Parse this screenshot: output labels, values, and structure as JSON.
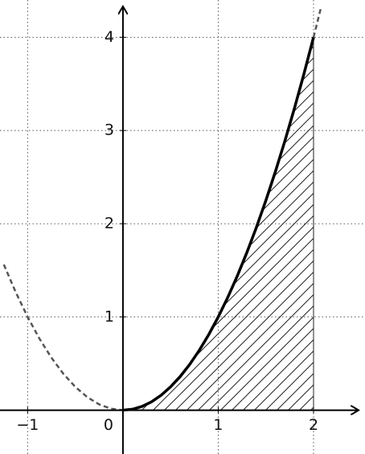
{
  "chart_data": {
    "type": "line",
    "xlim": [
      -1.29,
      2.54
    ],
    "ylim": [
      -0.47,
      4.4
    ],
    "xticks": [
      {
        "value": -1,
        "label": "−1"
      },
      0,
      1,
      2
    ],
    "yticks": [
      1,
      2,
      3,
      4
    ],
    "grid": true,
    "series": [
      {
        "color": "#000000",
        "style": "solid",
        "shaded": true,
        "x": [
          0,
          0.1,
          0.2,
          0.3,
          0.4,
          0.5,
          0.6,
          0.7,
          0.8,
          0.9,
          1,
          1.1,
          1.2,
          1.3,
          1.4,
          1.5,
          1.6,
          1.7,
          1.8,
          1.9,
          2
        ],
        "values": [
          0,
          0.01,
          0.04,
          0.09,
          0.16,
          0.25,
          0.36,
          0.49,
          0.64,
          0.81,
          1,
          1.21,
          1.44,
          1.69,
          1.96,
          2.25,
          2.56,
          2.89,
          3.24,
          3.61,
          4
        ]
      },
      {
        "color": "#555555",
        "style": "dashed",
        "x": [
          -1.25,
          -1.125,
          -1,
          -0.875,
          -0.75,
          -0.625,
          -0.5,
          -0.375,
          -0.25,
          -0.125,
          0,
          1,
          2,
          2.04,
          2.08
        ],
        "values": [
          1.5625,
          1.265625,
          1,
          0.765625,
          0.5625,
          0.390625,
          0.25,
          0.140625,
          0.0625,
          0.015625,
          0,
          null,
          4,
          4.1616,
          4.3264
        ]
      }
    ]
  }
}
